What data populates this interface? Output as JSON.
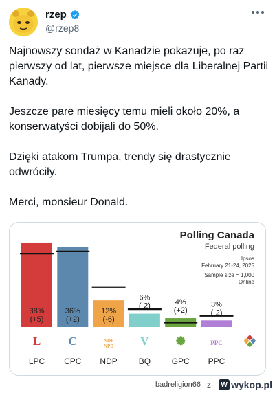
{
  "author": {
    "name": "rzep",
    "handle": "@rzep8"
  },
  "tweet": {
    "paragraphs": [
      "Najnowszy sondaż w Kanadzie pokazuje, po raz pierwszy od lat, pierwsze miejsce dla Liberalnej Partii Kanady.",
      "Jeszcze pare miesięcy temu mieli około 20%, a konserwatyści dobijali do 50%.",
      "Dzięki atakom Trumpa, trendy się drastycznie odwróciły.",
      "Merci, monsieur Donald."
    ]
  },
  "chart_data": {
    "type": "bar",
    "title": "Polling Canada",
    "subtitle": "Federal polling",
    "meta": [
      "Ipsos",
      "February 21-24, 2025",
      "Sample size = 1,000",
      "Online"
    ],
    "ylim": [
      0,
      42
    ],
    "categories": [
      "LPC",
      "CPC",
      "NDP",
      "BQ",
      "GPC",
      "PPC"
    ],
    "values": [
      38,
      36,
      12,
      6,
      4,
      3
    ],
    "changes": [
      "(+5)",
      "(+2)",
      "(-6)",
      "(-2)",
      "(+2)",
      "(-2)"
    ],
    "previous": [
      33,
      34,
      18,
      8,
      2,
      5
    ],
    "value_labels": [
      "38%",
      "36%",
      "12%",
      "6%",
      "4%",
      "3%"
    ],
    "colors": [
      "#d43b3b",
      "#5d88ad",
      "#f0a448",
      "#80cfcb",
      "#6aa43f",
      "#b27fd6"
    ],
    "logo_glyphs": [
      "L",
      "C",
      "NDP\nNPD",
      "V",
      "✺",
      "PPC"
    ]
  },
  "footer": {
    "user": "badreligion66",
    "z": "z",
    "site": "wykop.pl",
    "site_badge": "W"
  }
}
